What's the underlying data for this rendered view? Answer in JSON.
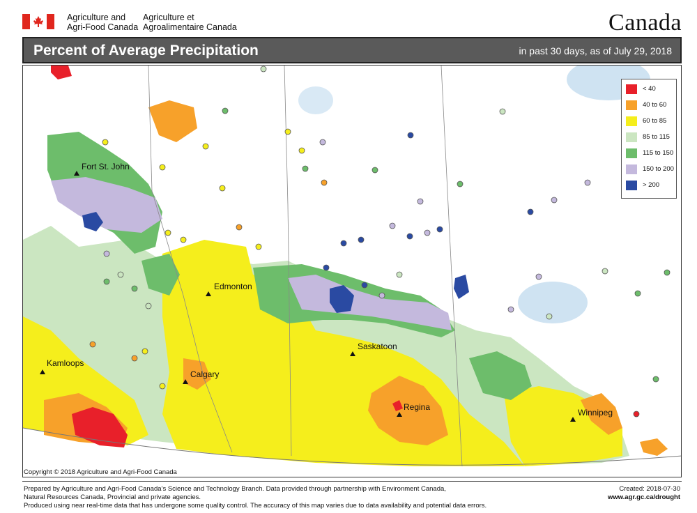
{
  "header": {
    "org_en_line1": "Agriculture and",
    "org_en_line2": "Agri-Food Canada",
    "org_fr_line1": "Agriculture et",
    "org_fr_line2": "Agroalimentaire Canada",
    "wordmark": "Canada"
  },
  "title": "Percent of Average Precipitation",
  "subtitle": "in past 30 days, as of July 29, 2018",
  "legend": [
    {
      "label": "< 40",
      "color": "#e8202a"
    },
    {
      "label": "40 to 60",
      "color": "#f7a12a"
    },
    {
      "label": "60 to 85",
      "color": "#f5ee1c"
    },
    {
      "label": "85 to 115",
      "color": "#cbe6c1"
    },
    {
      "label": "115 to 150",
      "color": "#6dbd6b"
    },
    {
      "label": "150 to 200",
      "color": "#c4b9dd"
    },
    {
      "label": "> 200",
      "color": "#2a4aa2"
    }
  ],
  "cities": [
    {
      "name": "Fort St. John"
    },
    {
      "name": "Edmonton"
    },
    {
      "name": "Kamloops"
    },
    {
      "name": "Calgary"
    },
    {
      "name": "Saskatoon"
    },
    {
      "name": "Regina"
    },
    {
      "name": "Winnipeg"
    }
  ],
  "copyright": "Copyright © 2018 Agriculture and Agri-Food Canada",
  "footer": {
    "line1": "Prepared by Agriculture and Agri-Food Canada’s Science and Technology Branch. Data provided through partnership with Environment Canada,",
    "line2": "Natural Resources Canada, Provincial and private agencies.",
    "line3": "Produced using near real-time data that has undergone some quality control. The accuracy of this map varies due to data availability and potential data errors.",
    "created": "Created: 2018-07-30",
    "url": "www.agr.gc.ca/drought"
  }
}
